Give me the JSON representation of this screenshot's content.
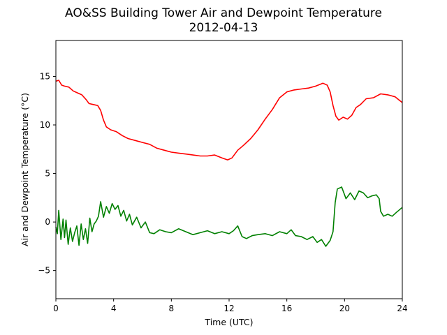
{
  "chart_data": {
    "type": "line",
    "title": "AO&SS Building Tower Air and Dewpoint Temperature",
    "subtitle": "2012-04-13",
    "xlabel": "Time (UTC)",
    "ylabel": "Air and Dewpoint Temperature (°C)",
    "xlim": [
      0,
      24
    ],
    "ylim": [
      -7.9,
      18.7
    ],
    "xticks": [
      0,
      4,
      8,
      12,
      16,
      20,
      24
    ],
    "yticks": [
      -5,
      0,
      5,
      10,
      15
    ],
    "grid": false,
    "legend": "none",
    "series": [
      {
        "color": "#ff0000",
        "x": [
          0,
          0.2,
          0.4,
          0.6,
          0.9,
          1.2,
          1.5,
          1.8,
          2.1,
          2.3,
          2.6,
          2.9,
          3.1,
          3.3,
          3.5,
          3.8,
          4.2,
          4.6,
          5.0,
          5.5,
          6.0,
          6.5,
          7.0,
          7.5,
          8.0,
          8.5,
          9.0,
          9.5,
          10.0,
          10.5,
          11.0,
          11.5,
          11.9,
          12.2,
          12.6,
          13.0,
          13.5,
          14.0,
          14.5,
          15.0,
          15.5,
          16.0,
          16.5,
          17.0,
          17.5,
          18.0,
          18.5,
          18.8,
          19.0,
          19.2,
          19.4,
          19.6,
          19.9,
          20.2,
          20.5,
          20.8,
          21.1,
          21.5,
          22.0,
          22.5,
          23.0,
          23.5,
          24.0
        ],
        "y": [
          14.5,
          14.6,
          14.1,
          14.0,
          13.9,
          13.5,
          13.3,
          13.1,
          12.6,
          12.2,
          12.1,
          12.0,
          11.5,
          10.5,
          9.8,
          9.5,
          9.3,
          8.9,
          8.6,
          8.4,
          8.2,
          8.0,
          7.6,
          7.4,
          7.2,
          7.1,
          7.0,
          6.9,
          6.8,
          6.8,
          6.9,
          6.6,
          6.4,
          6.6,
          7.4,
          7.9,
          8.6,
          9.5,
          10.6,
          11.6,
          12.8,
          13.4,
          13.6,
          13.7,
          13.8,
          14.0,
          14.3,
          14.1,
          13.4,
          12.0,
          10.9,
          10.5,
          10.8,
          10.6,
          11.0,
          11.8,
          12.1,
          12.7,
          12.8,
          13.2,
          13.1,
          12.9,
          12.3
        ]
      },
      {
        "color": "#008000",
        "x": [
          0,
          0.1,
          0.2,
          0.35,
          0.5,
          0.6,
          0.7,
          0.85,
          1.0,
          1.15,
          1.3,
          1.45,
          1.6,
          1.75,
          1.9,
          2.05,
          2.2,
          2.35,
          2.5,
          2.65,
          2.8,
          2.95,
          3.1,
          3.3,
          3.5,
          3.7,
          3.9,
          4.1,
          4.3,
          4.5,
          4.7,
          4.9,
          5.1,
          5.3,
          5.6,
          5.9,
          6.2,
          6.5,
          6.8,
          7.2,
          7.6,
          8.0,
          8.5,
          9.0,
          9.5,
          10.0,
          10.5,
          11.0,
          11.5,
          12.0,
          12.3,
          12.6,
          12.9,
          13.2,
          13.6,
          14.0,
          14.5,
          15.0,
          15.5,
          16.0,
          16.3,
          16.6,
          17.0,
          17.4,
          17.8,
          18.1,
          18.4,
          18.7,
          19.0,
          19.2,
          19.35,
          19.5,
          19.8,
          20.1,
          20.4,
          20.7,
          21.0,
          21.3,
          21.6,
          21.9,
          22.2,
          22.4,
          22.5,
          22.7,
          23.0,
          23.3,
          23.6,
          24.0
        ],
        "y": [
          -0.5,
          -1.2,
          1.2,
          -1.8,
          0.3,
          -1.6,
          0.2,
          -2.3,
          -0.6,
          -2.0,
          -1.1,
          -0.4,
          -2.4,
          -0.2,
          -1.8,
          -0.7,
          -2.2,
          0.4,
          -1.0,
          -0.2,
          0.1,
          0.6,
          2.1,
          0.5,
          1.6,
          0.9,
          1.9,
          1.3,
          1.7,
          0.6,
          1.2,
          0.1,
          0.8,
          -0.3,
          0.5,
          -0.6,
          0.0,
          -1.1,
          -1.2,
          -0.8,
          -1.0,
          -1.1,
          -0.7,
          -1.0,
          -1.3,
          -1.1,
          -0.9,
          -1.2,
          -1.0,
          -1.2,
          -0.9,
          -0.4,
          -1.5,
          -1.7,
          -1.4,
          -1.3,
          -1.2,
          -1.4,
          -1.0,
          -1.2,
          -0.8,
          -1.4,
          -1.5,
          -1.8,
          -1.5,
          -2.1,
          -1.8,
          -2.5,
          -1.9,
          -1.0,
          2.0,
          3.4,
          3.6,
          2.4,
          3.0,
          2.3,
          3.2,
          3.0,
          2.5,
          2.7,
          2.8,
          2.4,
          1.1,
          0.6,
          0.8,
          0.6,
          1.0,
          1.5
        ]
      }
    ]
  }
}
